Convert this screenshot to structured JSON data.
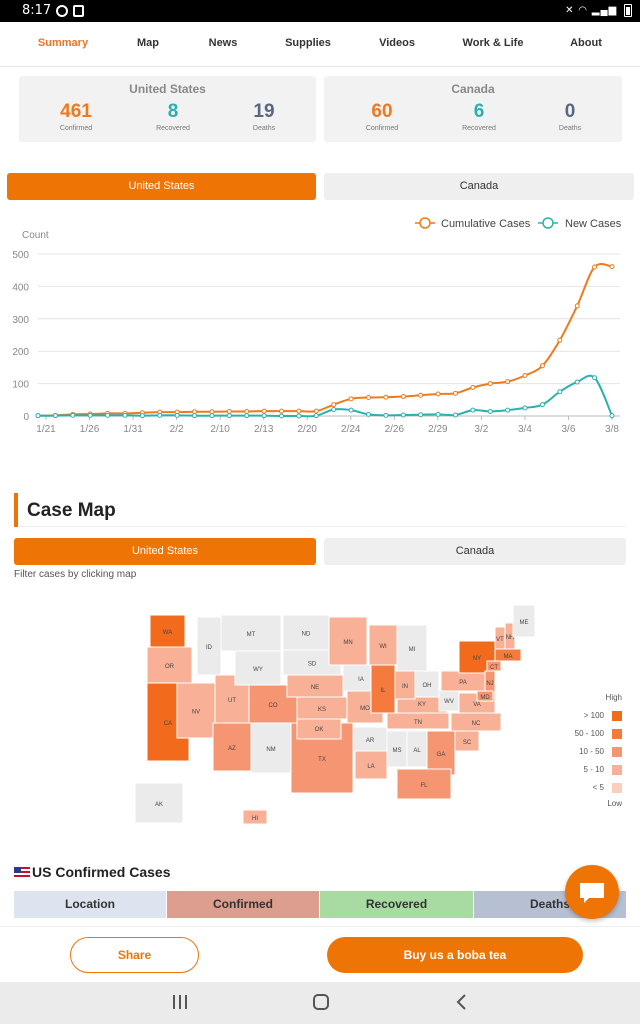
{
  "status_bar": {
    "time": "8:17"
  },
  "nav": {
    "tabs": [
      "Summary",
      "Map",
      "News",
      "Supplies",
      "Videos",
      "Work & Life",
      "About"
    ],
    "active": "Summary"
  },
  "summary": {
    "us": {
      "title": "United States",
      "confirmed": "461",
      "confirmed_label": "Confirmed",
      "recovered": "8",
      "recovered_label": "Recovered",
      "deaths": "19",
      "deaths_label": "Deaths"
    },
    "canada": {
      "title": "Canada",
      "confirmed": "60",
      "confirmed_label": "Confirmed",
      "recovered": "6",
      "recovered_label": "Recovered",
      "deaths": "0",
      "deaths_label": "Deaths"
    }
  },
  "chart_toggle": {
    "us": "United States",
    "canada": "Canada",
    "selected": "United States"
  },
  "chart_data": {
    "type": "line",
    "ylabel": "Count",
    "ylim": [
      0,
      500
    ],
    "yticks": [
      0,
      100,
      200,
      300,
      400,
      500
    ],
    "xtick_labels": [
      "1/21",
      "1/26",
      "1/31",
      "2/2",
      "2/10",
      "2/13",
      "2/20",
      "2/24",
      "2/26",
      "2/29",
      "3/2",
      "3/4",
      "3/6",
      "3/8"
    ],
    "legend_position": "top-right",
    "grid": true,
    "series": [
      {
        "name": "Cumulative Cases",
        "color": "#ef7a1c",
        "values": [
          1,
          2,
          5,
          6,
          8,
          8,
          10,
          12,
          12,
          13,
          13,
          14,
          14,
          15,
          15,
          15,
          15,
          35,
          53,
          57,
          58,
          60,
          64,
          68,
          70,
          88,
          100,
          106,
          125,
          155,
          234,
          340,
          460,
          461
        ]
      },
      {
        "name": "New Cases",
        "color": "#2bb0b0",
        "values": [
          1,
          1,
          2,
          2,
          2,
          2,
          1,
          2,
          2,
          1,
          1,
          1,
          1,
          1,
          0,
          0,
          1,
          20,
          18,
          5,
          2,
          3,
          4,
          5,
          3,
          18,
          14,
          18,
          25,
          35,
          75,
          105,
          118,
          1
        ]
      }
    ]
  },
  "case_map": {
    "title": "Case Map",
    "toggle": {
      "us": "United States",
      "canada": "Canada",
      "selected": "United States"
    },
    "filter_hint": "Filter cases by clicking map",
    "legend": {
      "high": "High",
      "low": "Low",
      "items": [
        {
          "label": "> 100",
          "color": "#f26b1d"
        },
        {
          "label": "50 - 100",
          "color": "#f47b3d"
        },
        {
          "label": "10 - 50",
          "color": "#f59572"
        },
        {
          "label": "5 - 10",
          "color": "#f8b097"
        },
        {
          "label": "< 5",
          "color": "#fbcdbd"
        }
      ]
    },
    "states": [
      "WA",
      "OR",
      "CA",
      "NV",
      "AZ",
      "UT",
      "CO",
      "ID",
      "MT",
      "WY",
      "NM",
      "TX",
      "OK",
      "KS",
      "NE",
      "SD",
      "ND",
      "MN",
      "IA",
      "MO",
      "AR",
      "LA",
      "MS",
      "AL",
      "GA",
      "FL",
      "SC",
      "NC",
      "TN",
      "KY",
      "IL",
      "WI",
      "MI",
      "IN",
      "OH",
      "WV",
      "VA",
      "PA",
      "NY",
      "VT",
      "NH",
      "ME",
      "MA",
      "CT",
      "NJ",
      "MD",
      "AK",
      "HI"
    ]
  },
  "us_cases": {
    "title": "US Confirmed Cases",
    "columns": [
      "Location",
      "Confirmed",
      "Recovered",
      "Deaths"
    ]
  },
  "footer": {
    "share": "Share",
    "boba": "Buy us a boba tea"
  }
}
